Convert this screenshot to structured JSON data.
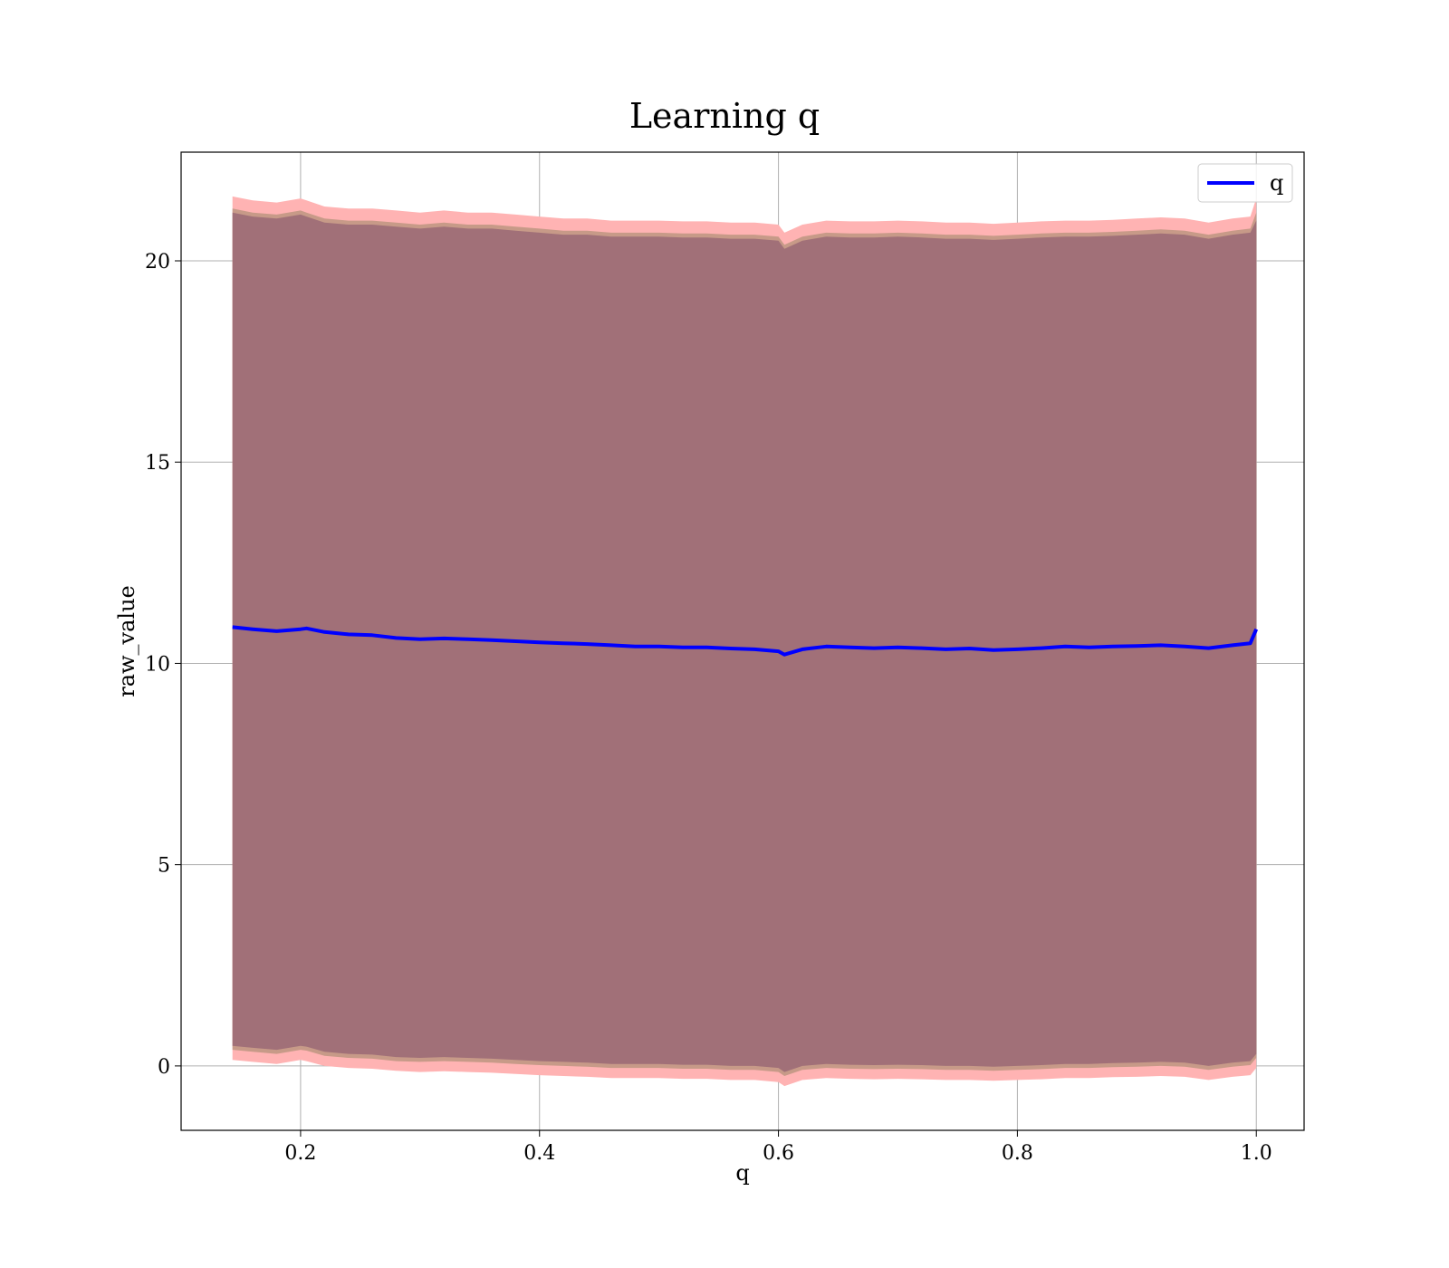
{
  "chart_data": {
    "type": "line",
    "title": "Learning q",
    "xlabel": "q",
    "ylabel": "raw_value",
    "xlim": [
      0.1,
      1.04
    ],
    "ylim": [
      -1.6,
      22.7
    ],
    "xticks": [
      0.2,
      0.4,
      0.6,
      0.8,
      1.0
    ],
    "xtick_labels": [
      "0.2",
      "0.4",
      "0.6",
      "0.8",
      "1.0"
    ],
    "yticks": [
      0,
      5,
      10,
      15,
      20
    ],
    "ytick_labels": [
      "0",
      "5",
      "10",
      "15",
      "20"
    ],
    "grid": true,
    "legend_position": "top-right",
    "colors": {
      "line": "#0000ff",
      "band_outer": "#ffb3b3",
      "band_mid": "#c79a88",
      "band_inner": "#a17078",
      "grid": "#b0b0b0"
    },
    "series": [
      {
        "name": "q",
        "x": [
          0.143,
          0.16,
          0.18,
          0.2,
          0.205,
          0.22,
          0.24,
          0.26,
          0.28,
          0.3,
          0.32,
          0.34,
          0.36,
          0.38,
          0.4,
          0.42,
          0.44,
          0.46,
          0.48,
          0.5,
          0.52,
          0.54,
          0.56,
          0.58,
          0.6,
          0.605,
          0.62,
          0.64,
          0.66,
          0.68,
          0.7,
          0.72,
          0.74,
          0.76,
          0.78,
          0.8,
          0.82,
          0.84,
          0.86,
          0.88,
          0.9,
          0.92,
          0.94,
          0.96,
          0.98,
          0.995,
          1.0
        ],
        "y": [
          10.9,
          10.85,
          10.8,
          10.85,
          10.87,
          10.78,
          10.72,
          10.7,
          10.63,
          10.6,
          10.62,
          10.6,
          10.58,
          10.55,
          10.52,
          10.5,
          10.48,
          10.45,
          10.42,
          10.42,
          10.4,
          10.4,
          10.37,
          10.35,
          10.3,
          10.22,
          10.35,
          10.42,
          10.4,
          10.38,
          10.4,
          10.38,
          10.35,
          10.37,
          10.33,
          10.35,
          10.38,
          10.42,
          10.4,
          10.42,
          10.43,
          10.45,
          10.42,
          10.38,
          10.45,
          10.5,
          10.85
        ],
        "band_outer_upper": [
          21.6,
          21.5,
          21.45,
          21.55,
          21.5,
          21.35,
          21.3,
          21.3,
          21.25,
          21.2,
          21.25,
          21.2,
          21.2,
          21.15,
          21.1,
          21.05,
          21.05,
          21.0,
          21.0,
          21.0,
          20.98,
          20.98,
          20.95,
          20.95,
          20.9,
          20.7,
          20.9,
          21.0,
          20.98,
          20.98,
          21.0,
          20.98,
          20.95,
          20.95,
          20.92,
          20.95,
          20.98,
          21.0,
          21.0,
          21.02,
          21.05,
          21.08,
          21.05,
          20.95,
          21.05,
          21.1,
          21.55
        ],
        "band_mid_upper": [
          21.3,
          21.2,
          21.15,
          21.25,
          21.2,
          21.05,
          21.0,
          21.0,
          20.95,
          20.9,
          20.95,
          20.9,
          20.9,
          20.85,
          20.8,
          20.75,
          20.75,
          20.7,
          20.7,
          20.7,
          20.68,
          20.68,
          20.65,
          20.65,
          20.6,
          20.4,
          20.6,
          20.7,
          20.68,
          20.68,
          20.7,
          20.68,
          20.65,
          20.65,
          20.62,
          20.65,
          20.68,
          20.7,
          20.7,
          20.72,
          20.75,
          20.78,
          20.75,
          20.65,
          20.75,
          20.8,
          21.2
        ],
        "band_inner_upper": [
          21.2,
          21.1,
          21.05,
          21.15,
          21.1,
          20.95,
          20.9,
          20.9,
          20.85,
          20.8,
          20.85,
          20.8,
          20.8,
          20.75,
          20.7,
          20.65,
          20.65,
          20.6,
          20.6,
          20.6,
          20.58,
          20.58,
          20.55,
          20.55,
          20.5,
          20.3,
          20.5,
          20.6,
          20.58,
          20.58,
          20.6,
          20.58,
          20.55,
          20.55,
          20.52,
          20.55,
          20.58,
          20.6,
          20.6,
          20.62,
          20.65,
          20.68,
          20.65,
          20.55,
          20.65,
          20.7,
          21.0
        ],
        "band_inner_lower": [
          0.5,
          0.45,
          0.4,
          0.5,
          0.48,
          0.35,
          0.3,
          0.28,
          0.22,
          0.2,
          0.22,
          0.2,
          0.18,
          0.15,
          0.12,
          0.1,
          0.08,
          0.05,
          0.05,
          0.05,
          0.03,
          0.03,
          0.0,
          0.0,
          -0.05,
          -0.15,
          0.0,
          0.05,
          0.03,
          0.02,
          0.03,
          0.02,
          0.0,
          0.0,
          -0.02,
          0.0,
          0.02,
          0.05,
          0.05,
          0.07,
          0.08,
          0.1,
          0.08,
          0.0,
          0.08,
          0.12,
          0.3
        ],
        "band_mid_lower": [
          0.4,
          0.35,
          0.3,
          0.4,
          0.38,
          0.25,
          0.2,
          0.18,
          0.12,
          0.1,
          0.12,
          0.1,
          0.08,
          0.05,
          0.02,
          0.0,
          -0.02,
          -0.05,
          -0.05,
          -0.05,
          -0.07,
          -0.07,
          -0.1,
          -0.1,
          -0.15,
          -0.25,
          -0.1,
          -0.05,
          -0.07,
          -0.08,
          -0.07,
          -0.08,
          -0.1,
          -0.1,
          -0.12,
          -0.1,
          -0.08,
          -0.05,
          -0.05,
          -0.03,
          -0.02,
          0.0,
          -0.02,
          -0.1,
          -0.02,
          0.02,
          0.2
        ],
        "band_outer_lower": [
          0.15,
          0.1,
          0.05,
          0.15,
          0.12,
          0.0,
          -0.05,
          -0.07,
          -0.12,
          -0.15,
          -0.13,
          -0.15,
          -0.17,
          -0.2,
          -0.23,
          -0.25,
          -0.27,
          -0.3,
          -0.3,
          -0.3,
          -0.32,
          -0.32,
          -0.35,
          -0.35,
          -0.4,
          -0.5,
          -0.35,
          -0.3,
          -0.32,
          -0.33,
          -0.32,
          -0.33,
          -0.35,
          -0.35,
          -0.37,
          -0.35,
          -0.33,
          -0.3,
          -0.3,
          -0.28,
          -0.27,
          -0.25,
          -0.27,
          -0.35,
          -0.27,
          -0.23,
          -0.05
        ]
      }
    ]
  }
}
